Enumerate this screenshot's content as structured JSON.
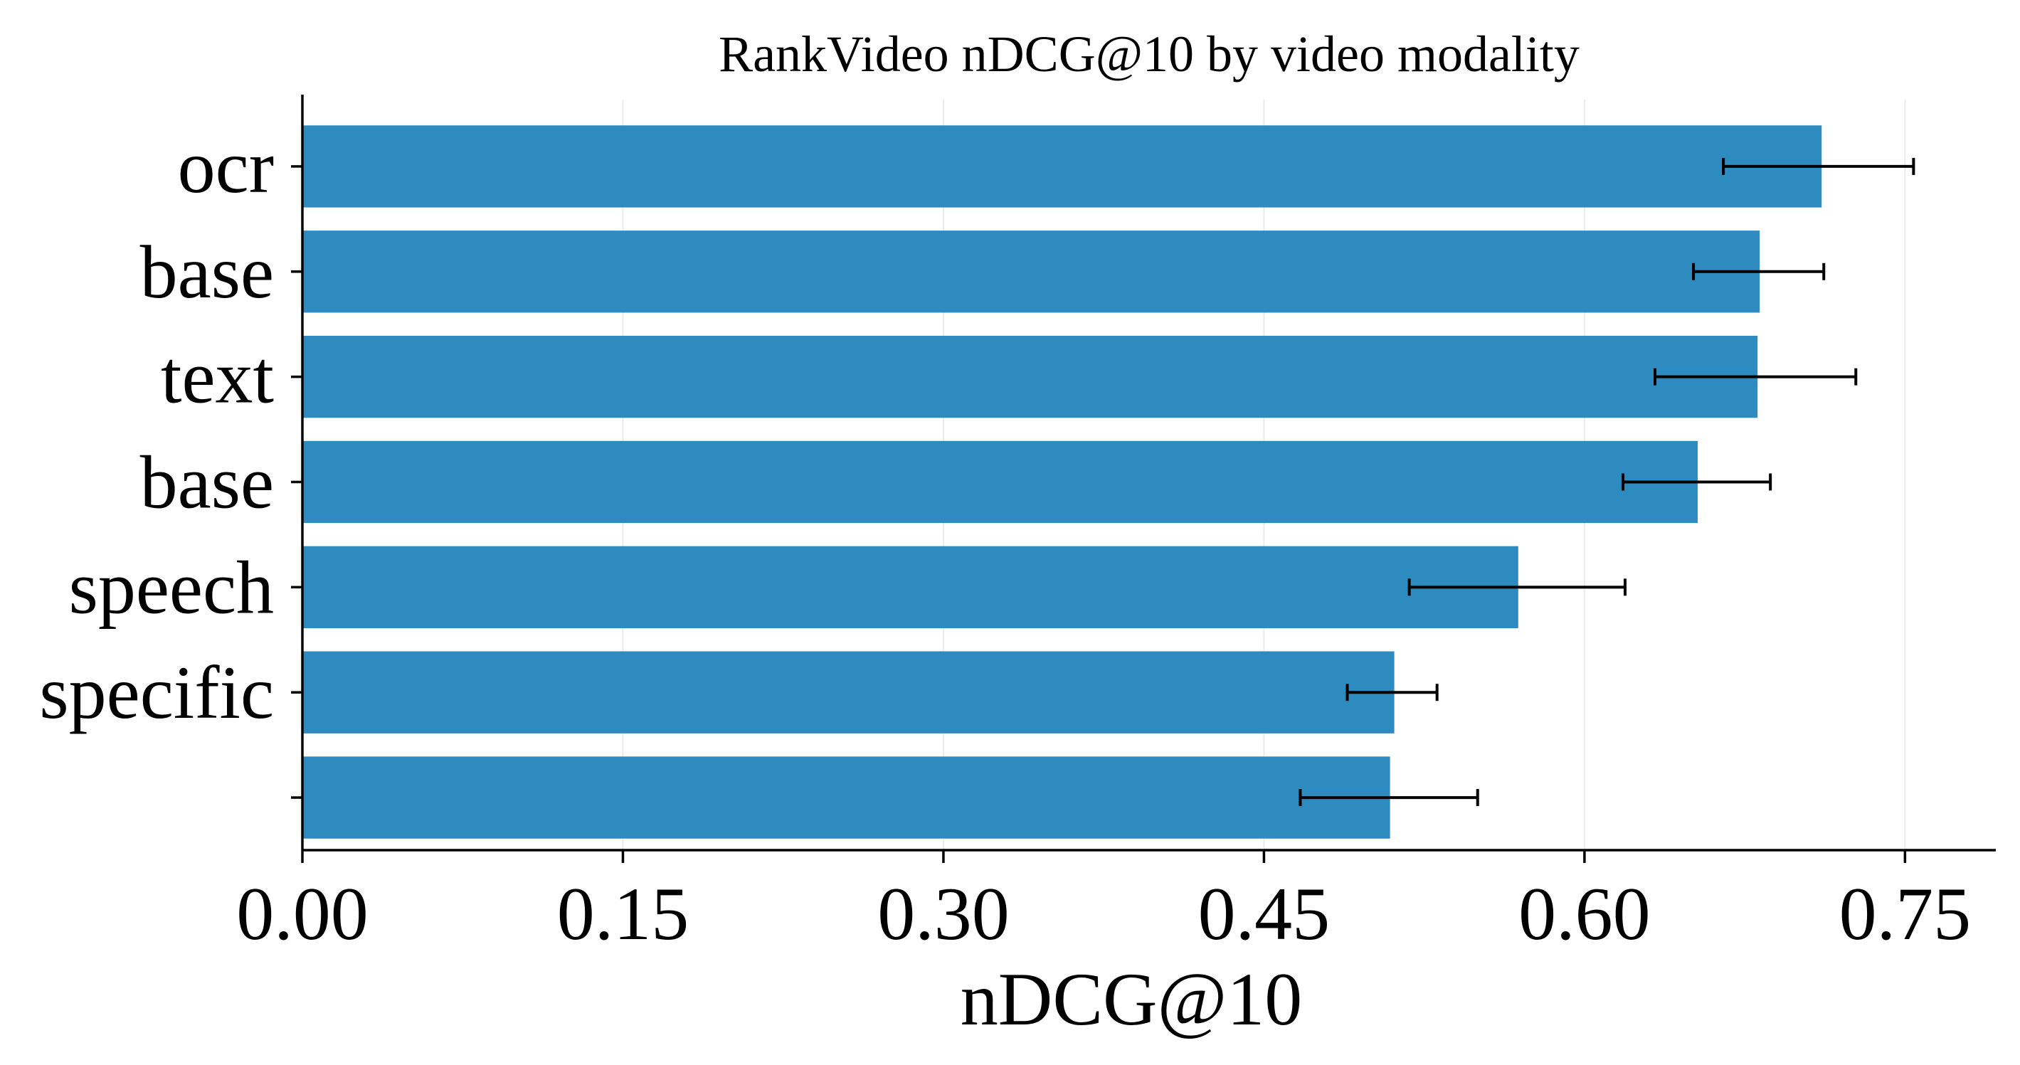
{
  "chart_data": {
    "type": "bar",
    "orientation": "horizontal",
    "title": "RankVideo nDCG@10 by video modality",
    "xlabel": "nDCG@10",
    "ylabel": "",
    "categories": [
      "ocr",
      "base",
      "text",
      "base",
      "speech",
      "specific",
      ""
    ],
    "values": [
      0.711,
      0.682,
      0.681,
      0.653,
      0.569,
      0.511,
      0.509
    ],
    "errors": [
      [
        0.665,
        0.754
      ],
      [
        0.651,
        0.712
      ],
      [
        0.633,
        0.727
      ],
      [
        0.618,
        0.687
      ],
      [
        0.518,
        0.619
      ],
      [
        0.489,
        0.531
      ],
      [
        0.467,
        0.55
      ]
    ],
    "xlim": [
      0,
      0.7925
    ],
    "xticks": [
      "0.00",
      "0.15",
      "0.30",
      "0.45",
      "0.60",
      "0.75"
    ],
    "grid": "vertical",
    "bar_color": "#2e8bc0"
  }
}
